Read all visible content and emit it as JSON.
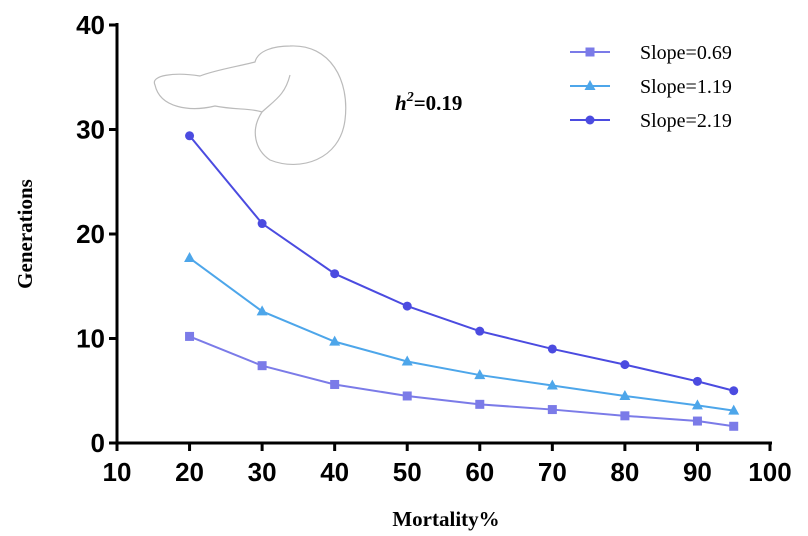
{
  "chart_data": {
    "type": "line",
    "xlabel": "Mortality%",
    "ylabel": "Generations",
    "annotation": {
      "base": "h",
      "sup": "2",
      "rest": "=0.19"
    },
    "x": [
      20,
      30,
      40,
      50,
      60,
      70,
      80,
      90,
      95
    ],
    "series": [
      {
        "name": "Slope=0.69",
        "color": "#7b7be8",
        "marker": "square",
        "values": [
          10.2,
          7.4,
          5.6,
          4.5,
          3.7,
          3.2,
          2.6,
          2.1,
          1.6
        ]
      },
      {
        "name": "Slope=1.19",
        "color": "#4da6ea",
        "marker": "triangle",
        "values": [
          17.7,
          12.6,
          9.7,
          7.8,
          6.5,
          5.5,
          4.5,
          3.6,
          3.1
        ]
      },
      {
        "name": "Slope=2.19",
        "color": "#4b4be0",
        "marker": "circle",
        "values": [
          29.4,
          21.0,
          16.2,
          13.1,
          10.7,
          9.0,
          7.5,
          5.9,
          5.0
        ]
      }
    ],
    "xlim": [
      10,
      100
    ],
    "xticks": [
      10,
      20,
      30,
      40,
      50,
      60,
      70,
      80,
      90,
      100
    ],
    "ylim": [
      0,
      40
    ],
    "yticks": [
      0,
      10,
      20,
      30,
      40
    ],
    "grid": false,
    "legend": "upper-right"
  }
}
